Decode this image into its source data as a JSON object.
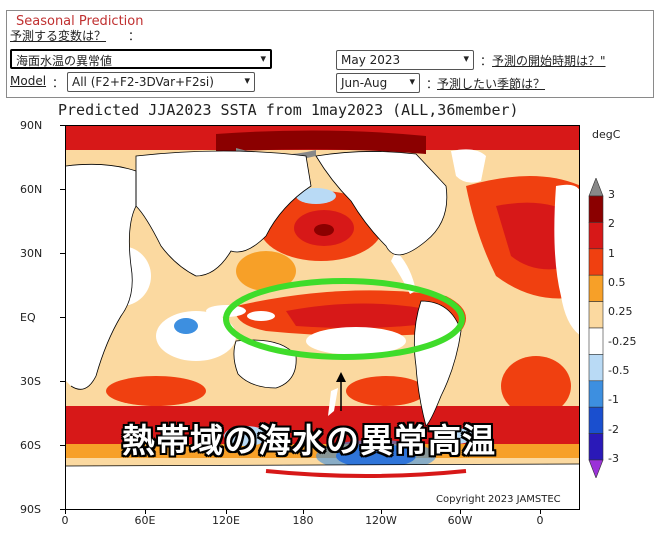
{
  "panel": {
    "title": "Seasonal Prediction",
    "variable_question": "予測する変数は？",
    "variable_colon": "：",
    "variable_value": "海面水温の異常値",
    "model_label": "Model",
    "model_colon": "：",
    "model_value": "All (F2+F2-3DVar+F2si)",
    "start_value": "May 2023",
    "start_colon": "：",
    "start_question": "予測の開始時期は？\"",
    "season_value": "Jun-Aug",
    "season_colon": "：",
    "season_question": "予測したい季節は？"
  },
  "map": {
    "title": "Predicted JJA2023 SSTA from 1may2023 (ALL,36member)",
    "lat_labels": [
      "90N",
      "60N",
      "30N",
      "EQ",
      "30S",
      "60S",
      "90S"
    ],
    "lon_labels": [
      "0",
      "60E",
      "120E",
      "180",
      "120W",
      "60W",
      "0"
    ],
    "copyright": "Copyright 2023 JAMSTEC",
    "annotation": "熱帯域の海水の異常高温",
    "highlight_color": "#3fdc2a",
    "land_color": "#ffffff"
  },
  "colorbar": {
    "unit": "degC",
    "labels": [
      "3",
      "2",
      "1",
      "0.5",
      "0.25",
      "-0.25",
      "-0.5",
      "-1",
      "-2",
      "-3"
    ],
    "colors": [
      "#888888",
      "#8b0000",
      "#d71818",
      "#f04010",
      "#f7a028",
      "#fbd9a0",
      "#ffffff",
      "#b9daf5",
      "#3d8fe0",
      "#1a4fcf",
      "#2a19b8",
      "#9b32d8"
    ]
  }
}
